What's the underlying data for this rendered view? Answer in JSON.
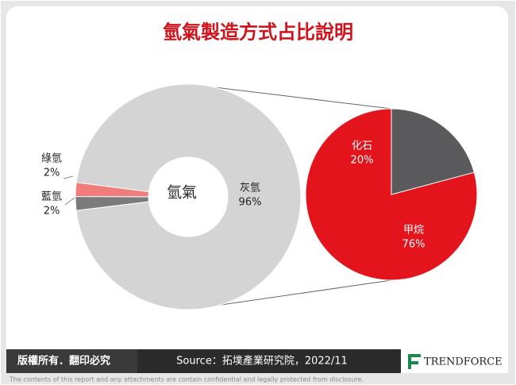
{
  "title": "氫氣製造方式占比說明",
  "chart_data": [
    {
      "type": "donut",
      "center_label": "氫氣",
      "categories": [
        "灰氫",
        "綠氫",
        "藍氫"
      ],
      "values": [
        96,
        2,
        2
      ],
      "value_labels": [
        "96%",
        "2%",
        "2%"
      ],
      "colors": [
        "#d4d4d4",
        "#f07c7c",
        "#7b7b7b"
      ]
    },
    {
      "type": "pie",
      "categories": [
        "甲烷",
        "化石"
      ],
      "values": [
        76,
        20
      ],
      "value_labels": [
        "76%",
        "20%"
      ],
      "colors": [
        "#e3141c",
        "#5a5a5c"
      ]
    }
  ],
  "footer": {
    "rights": "版權所有．翻印必究",
    "source": "Source：拓墣產業研究院，2022/11",
    "logo": "TRENDFORCE",
    "disclaimer": "The contents of this report and any attachments are contain confidential and legally protected from disclosure."
  }
}
